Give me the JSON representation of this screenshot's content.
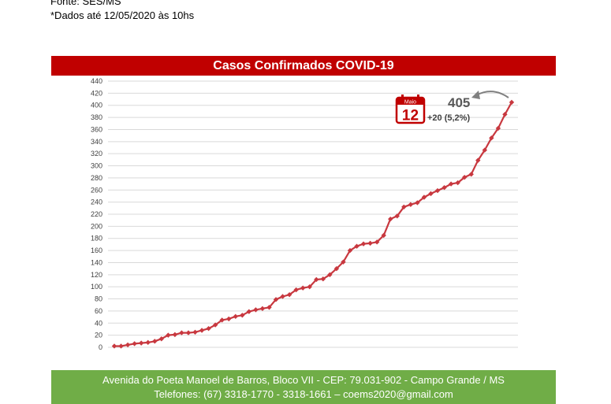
{
  "header": {
    "source_line": "Fonte: SES/MS",
    "date_line": "*Dados até 12/05/2020 às 10hs"
  },
  "chart_data": {
    "type": "line",
    "title": "Casos Confirmados COVID-19",
    "xlabel": "",
    "ylabel": "",
    "ylim": [
      0,
      440
    ],
    "yticks": [
      0,
      20,
      40,
      60,
      80,
      100,
      120,
      140,
      160,
      180,
      200,
      220,
      240,
      260,
      280,
      300,
      320,
      340,
      360,
      380,
      400,
      420,
      440
    ],
    "grid": true,
    "line_color": "#c8383f",
    "series": [
      {
        "values": [
          2,
          2,
          4,
          6,
          7,
          8,
          10,
          14,
          20,
          21,
          24,
          24,
          25,
          28,
          31,
          37,
          45,
          47,
          51,
          53,
          59,
          62,
          64,
          66,
          79,
          84,
          87,
          95,
          98,
          100,
          112,
          113,
          120,
          130,
          141,
          160,
          167,
          171,
          172,
          174,
          185,
          212,
          217,
          232,
          236,
          239,
          248,
          254,
          259,
          264,
          270,
          272,
          281,
          286,
          309,
          326,
          346,
          362,
          385,
          405
        ]
      }
    ],
    "annotation": {
      "value_label": "405",
      "change_label": "+20 (5,2%)",
      "calendar_month": "Maio",
      "calendar_day": "12",
      "calendar_color": "#c00000",
      "arrow_color": "#7f7f7f"
    }
  },
  "footer": {
    "address": "Avenida do Poeta Manoel de Barros, Bloco VII - CEP: 79.031-902 - Campo Grande / MS",
    "phones": "Telefones: (67) 3318-1770 - 3318-1661 – coems2020@gmail.com"
  }
}
